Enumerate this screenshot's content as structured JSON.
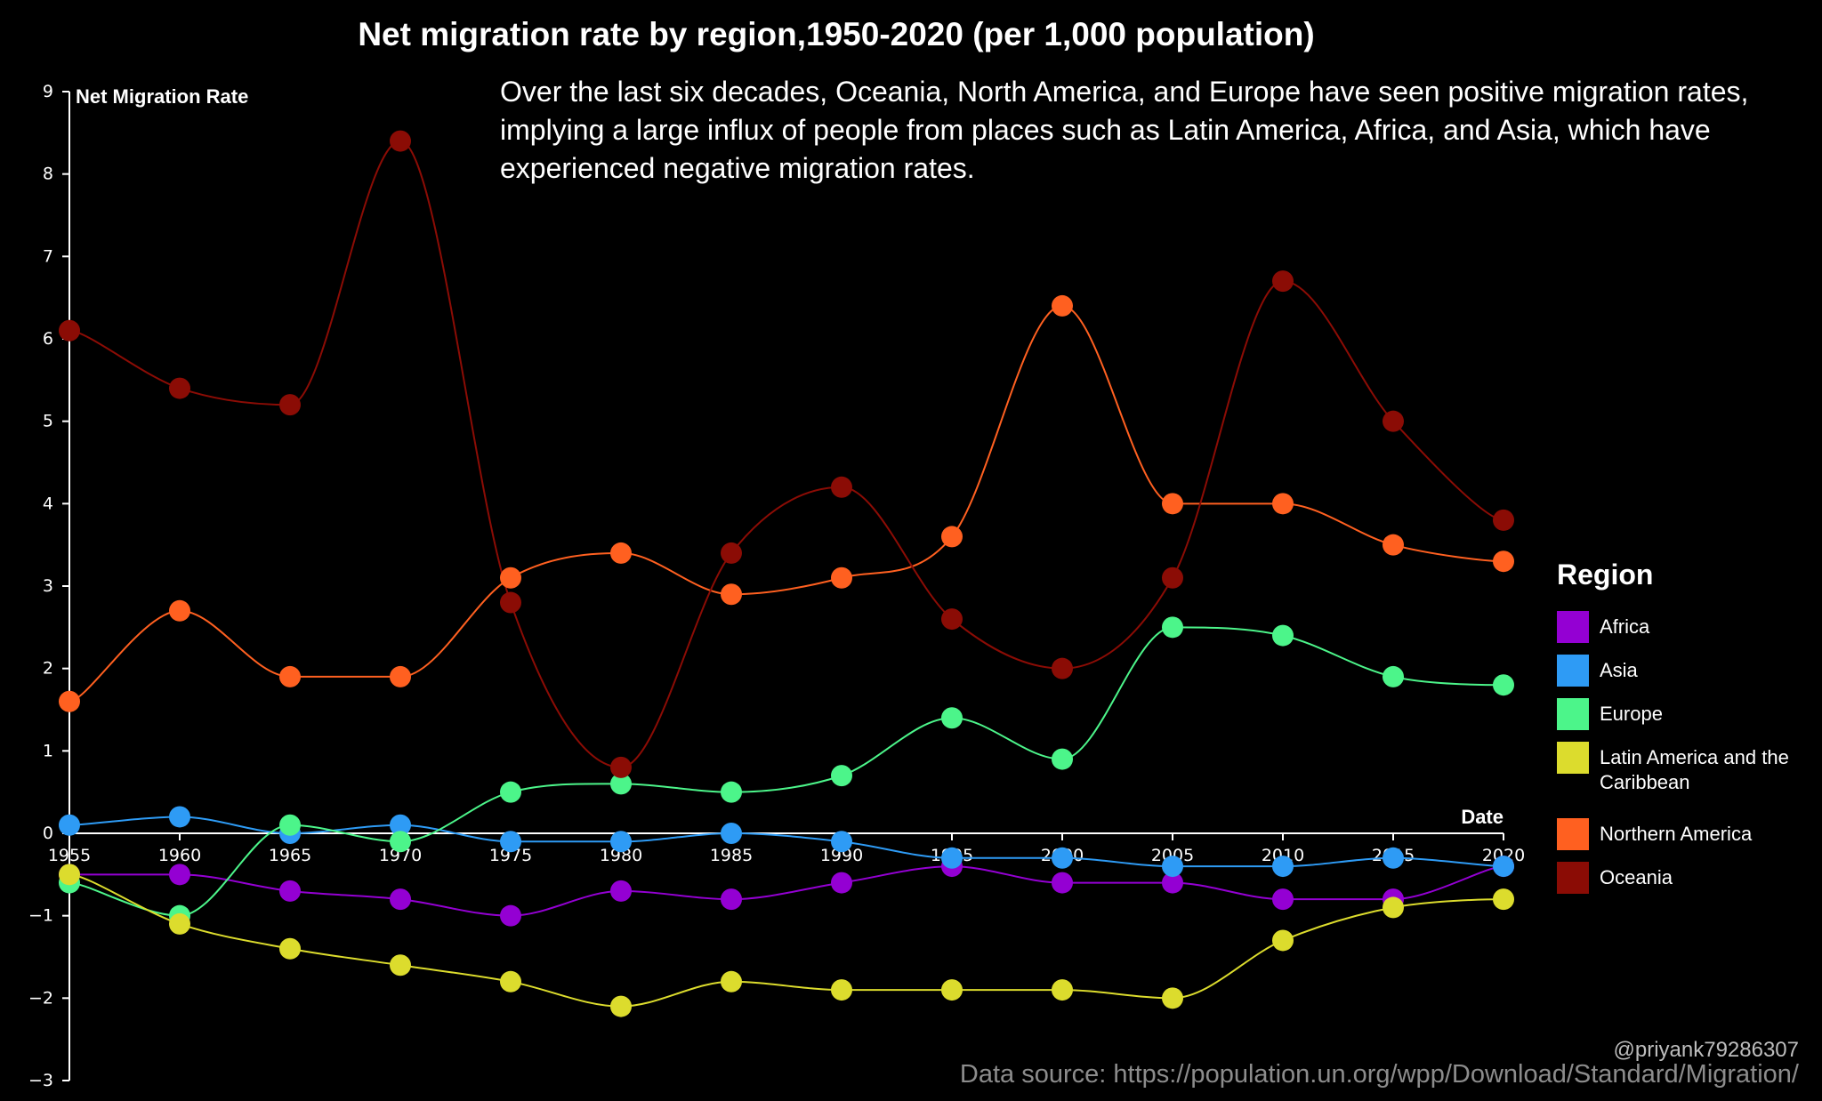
{
  "header": {
    "title": "Net migration rate by region,1950-2020 (per 1,000 population)",
    "subtitle": "Over the last six decades, Oceania, North America, and Europe have seen positive migration rates, implying a large influx of people from places such as Latin America, Africa, and Asia, which have experienced negative migration rates."
  },
  "legend": {
    "title": "Region",
    "items": [
      {
        "label": "Africa",
        "color": "#9400d3"
      },
      {
        "label": "Asia",
        "color": "#2e9bf5"
      },
      {
        "label": "Europe",
        "color": "#4cf58a"
      },
      {
        "label": "Latin America and the\nCaribbean",
        "color": "#dcdc2d"
      },
      {
        "label": "Northern America",
        "color": "#ff6020"
      },
      {
        "label": "Oceania",
        "color": "#8b0c05"
      }
    ]
  },
  "footer": {
    "credit": "@priyank79286307",
    "source": "Data source: https://population.un.org/wpp/Download/Standard/Migration/"
  },
  "chart_data": {
    "type": "line",
    "title": "Net migration rate by region,1950-2020 (per 1,000 population)",
    "xlabel": "Date",
    "ylabel": "Net Migration Rate",
    "x": [
      1955,
      1960,
      1965,
      1970,
      1975,
      1980,
      1985,
      1990,
      1995,
      2000,
      2005,
      2010,
      2015,
      2020
    ],
    "x_tick_labels": [
      "1955",
      "1960",
      "1965",
      "1970",
      "1975",
      "1980",
      "1985",
      "1990",
      "1995",
      "2000",
      "2005",
      "2010",
      "2015",
      "2020"
    ],
    "y_ticks": [
      9,
      8,
      7,
      6,
      5,
      4,
      3,
      2,
      1,
      0,
      -1,
      -2,
      -3
    ],
    "y_tick_labels": [
      "9",
      "8",
      "7",
      "6",
      "5",
      "4",
      "3",
      "2",
      "1",
      "0",
      "−1",
      "−2",
      "−3"
    ],
    "xlim": [
      1955,
      2020
    ],
    "ylim": [
      -3,
      9
    ],
    "grid": false,
    "legend_position": "right",
    "series": [
      {
        "name": "Africa",
        "color": "#9400d3",
        "values": [
          -0.5,
          -0.5,
          -0.7,
          -0.8,
          -1.0,
          -0.7,
          -0.8,
          -0.6,
          -0.4,
          -0.6,
          -0.6,
          -0.8,
          -0.8,
          -0.4
        ]
      },
      {
        "name": "Asia",
        "color": "#2e9bf5",
        "values": [
          0.1,
          0.2,
          0.0,
          0.1,
          -0.1,
          -0.1,
          0.0,
          -0.1,
          -0.3,
          -0.3,
          -0.4,
          -0.4,
          -0.3,
          -0.4
        ]
      },
      {
        "name": "Europe",
        "color": "#4cf58a",
        "values": [
          -0.6,
          -1.0,
          0.1,
          -0.1,
          0.5,
          0.6,
          0.5,
          0.7,
          1.4,
          0.9,
          2.5,
          2.4,
          1.9,
          1.8
        ]
      },
      {
        "name": "Latin America and the Caribbean",
        "color": "#dcdc2d",
        "values": [
          -0.5,
          -1.1,
          -1.4,
          -1.6,
          -1.8,
          -2.1,
          -1.8,
          -1.9,
          -1.9,
          -1.9,
          -2.0,
          -1.3,
          -0.9,
          -0.8
        ]
      },
      {
        "name": "Northern America",
        "color": "#ff6020",
        "values": [
          1.6,
          2.7,
          1.9,
          1.9,
          3.1,
          3.4,
          2.9,
          3.1,
          3.6,
          6.4,
          4.0,
          4.0,
          3.5,
          3.3
        ]
      },
      {
        "name": "Oceania",
        "color": "#8b0c05",
        "values": [
          6.1,
          5.4,
          5.2,
          8.4,
          2.8,
          0.8,
          3.4,
          4.2,
          2.6,
          2.0,
          3.1,
          6.7,
          5.0,
          3.8
        ]
      }
    ]
  }
}
